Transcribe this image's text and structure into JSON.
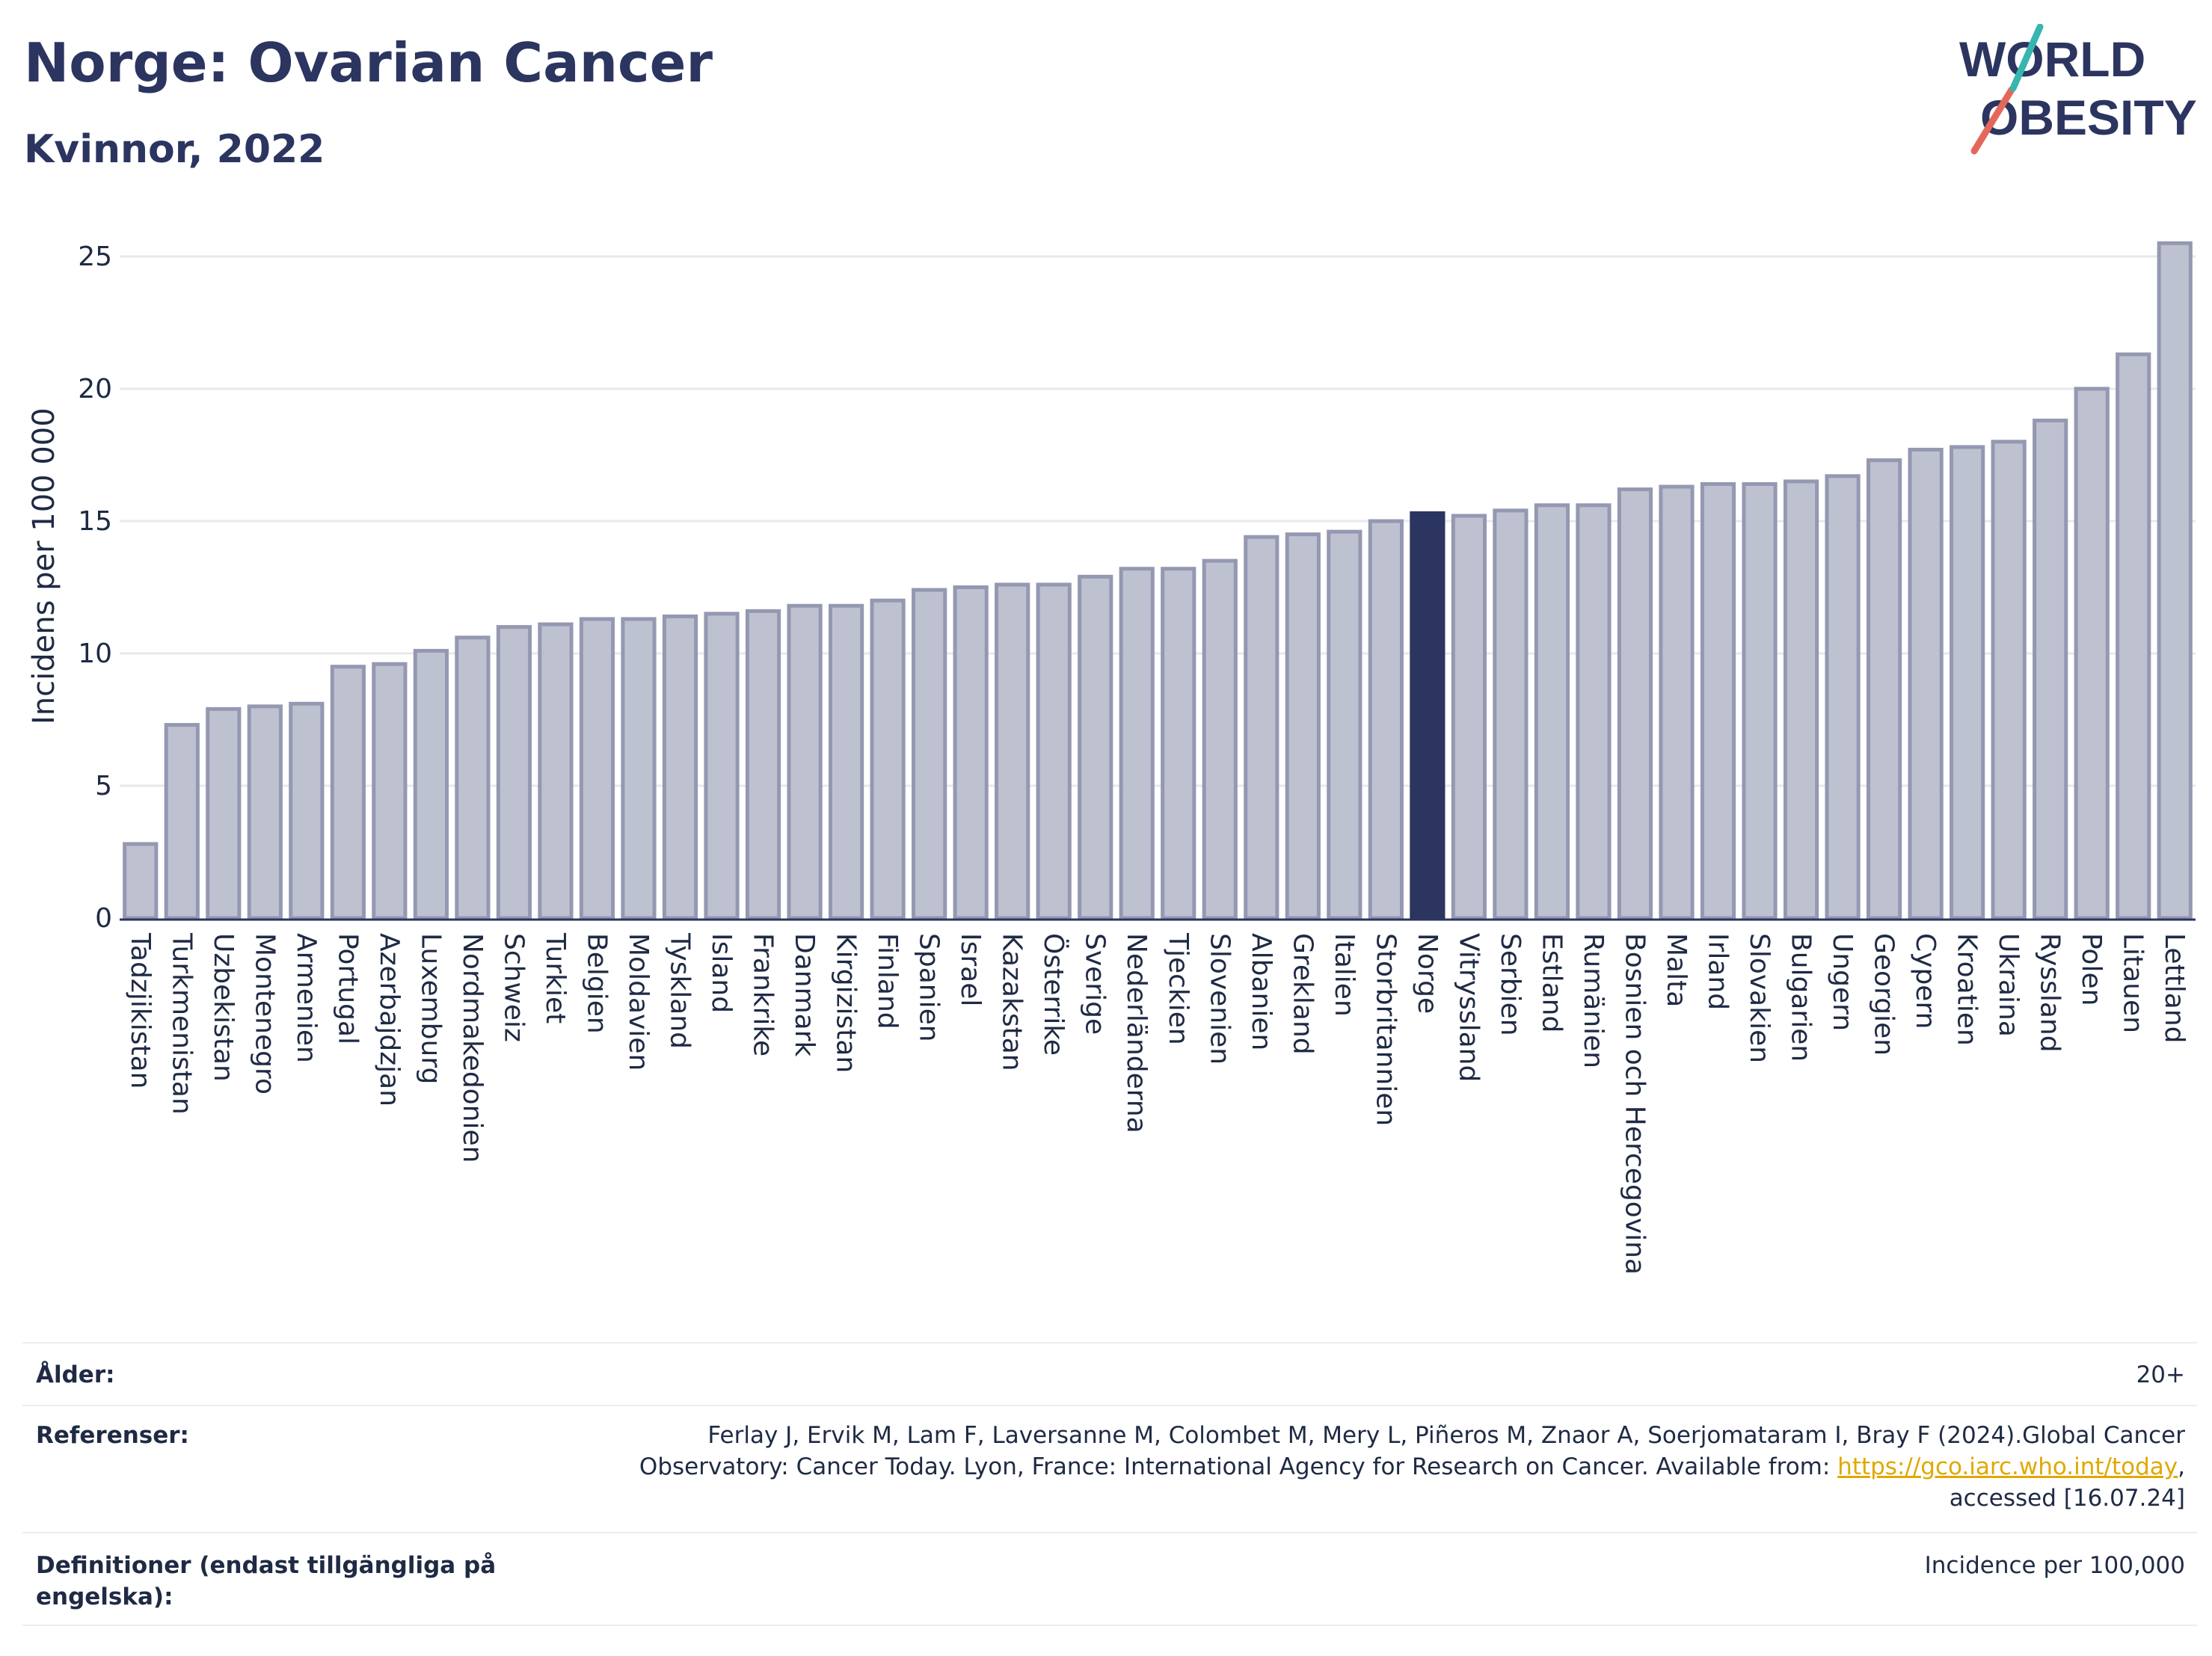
{
  "header": {
    "title": "Norge: Ovarian Cancer",
    "subtitle": "Kvinnor, 2022",
    "logo_line1": "WORLD",
    "logo_line2": "OBESITY"
  },
  "colors": {
    "bar": "#bec1d0",
    "bar_border": "#9498b1",
    "highlight": "#2b3560",
    "accent_red": "#e4685a",
    "accent_teal": "#37b5b0"
  },
  "chart_data": {
    "type": "bar",
    "ylabel": "Incidens per 100 000",
    "ylim": [
      0,
      26.5
    ],
    "yticks": [
      0,
      5,
      10,
      15,
      20,
      25
    ],
    "grid": true,
    "highlight": "Norge",
    "categories": [
      "Tadzjikistan",
      "Turkmenistan",
      "Uzbekistan",
      "Montenegro",
      "Armenien",
      "Portugal",
      "Azerbajdzjan",
      "Luxemburg",
      "Nordmakedonien",
      "Schweiz",
      "Turkiet",
      "Belgien",
      "Moldavien",
      "Tyskland",
      "Island",
      "Frankrike",
      "Danmark",
      "Kirgizistan",
      "Finland",
      "Spanien",
      "Israel",
      "Kazakstan",
      "Österrike",
      "Sverige",
      "Nederländerna",
      "Tjeckien",
      "Slovenien",
      "Albanien",
      "Grekland",
      "Italien",
      "Storbritannien",
      "Norge",
      "Vitryssland",
      "Serbien",
      "Estland",
      "Rumänien",
      "Bosnien och Hercegovina",
      "Malta",
      "Irland",
      "Slovakien",
      "Bulgarien",
      "Ungern",
      "Georgien",
      "Cypern",
      "Kroatien",
      "Ukraina",
      "Ryssland",
      "Polen",
      "Litauen",
      "Lettland"
    ],
    "values": [
      2.8,
      7.3,
      7.9,
      8.0,
      8.1,
      9.5,
      9.6,
      10.1,
      10.6,
      11.0,
      11.1,
      11.3,
      11.3,
      11.4,
      11.5,
      11.6,
      11.8,
      11.8,
      12.0,
      12.4,
      12.5,
      12.6,
      12.6,
      12.9,
      13.2,
      13.2,
      13.5,
      14.4,
      14.5,
      14.6,
      15.0,
      15.3,
      15.2,
      15.4,
      15.6,
      15.6,
      16.2,
      16.3,
      16.4,
      16.4,
      16.5,
      16.7,
      17.3,
      17.7,
      17.8,
      18.0,
      18.8,
      20.0,
      21.3,
      25.5
    ]
  },
  "info": {
    "age_label": "Ålder:",
    "age_value": "20+",
    "ref_label": "Referenser:",
    "ref_line1": "Ferlay J, Ervik M, Lam F, Laversanne M, Colombet M, Mery L, Piñeros M, Znaor A, Soerjomataram I, Bray F (2024).Global Cancer",
    "ref_line2_prefix": "Observatory: Cancer Today. Lyon, France: International Agency for Research on Cancer. Available from: ",
    "ref_link": "https://gco.iarc.who.int/today",
    "ref_line2_suffix": ",",
    "ref_line3": "accessed [16.07.24]",
    "def_label": "Definitioner (endast tillgängliga på engelska):",
    "def_value": "Incidence per 100,000"
  }
}
